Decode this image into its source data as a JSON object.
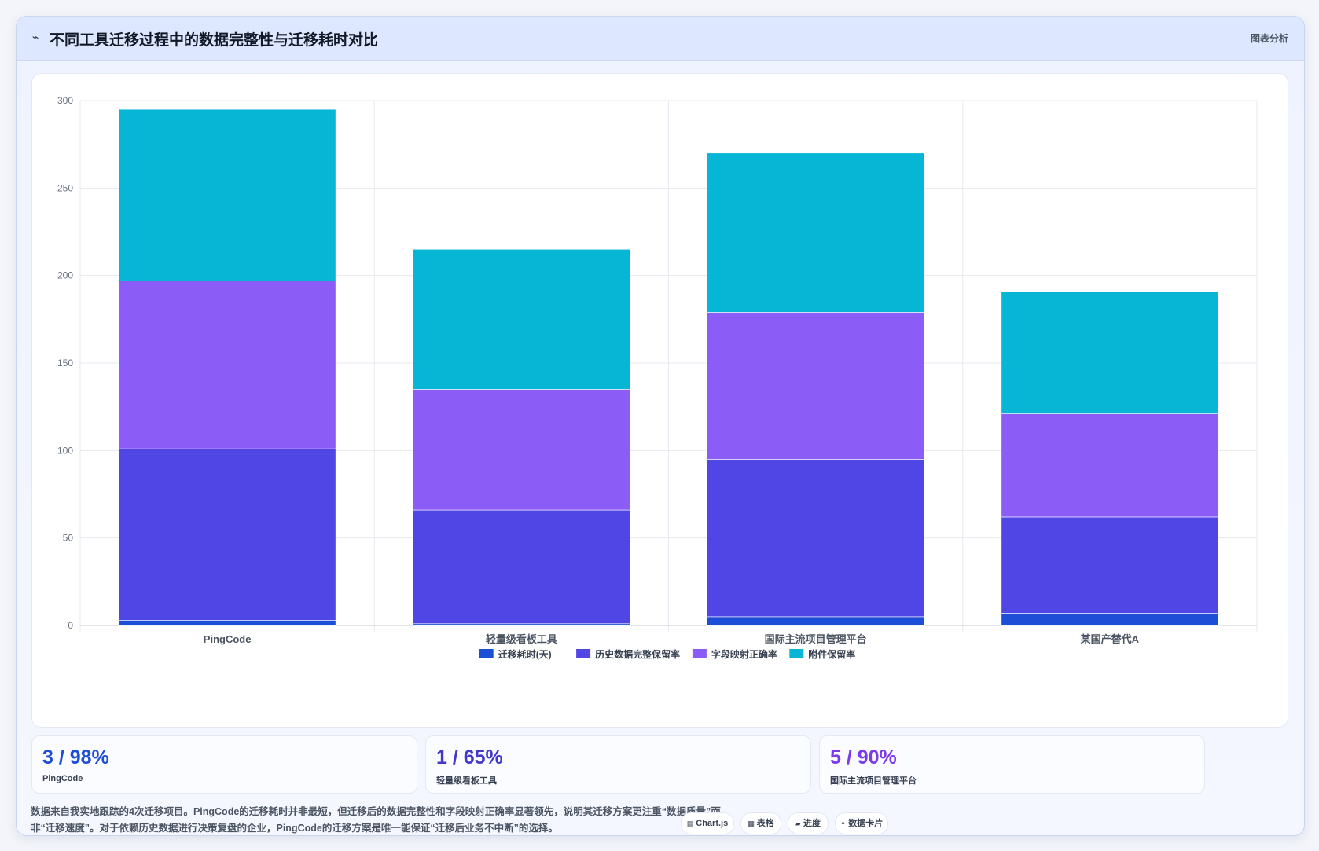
{
  "header": {
    "icon": "chart-line-icon",
    "title": "不同工具迁移过程中的数据完整性与迁移耗时对比",
    "tag": "图表分析"
  },
  "chart_data": {
    "type": "bar",
    "stacked": true,
    "categories": [
      "PingCode",
      "轻量级看板工具",
      "国际主流项目管理平台",
      "某国产替代A"
    ],
    "series": [
      {
        "name": "迁移耗时(天)",
        "color": "#1d4ed8",
        "values": [
          3,
          1,
          5,
          7
        ]
      },
      {
        "name": "历史数据完整保留率",
        "color": "#4f46e5",
        "values": [
          98,
          65,
          90,
          55
        ]
      },
      {
        "name": "字段映射正确率",
        "color": "#8b5cf6",
        "values": [
          96,
          69,
          84,
          59
        ]
      },
      {
        "name": "附件保留率",
        "color": "#06b6d4",
        "values": [
          98,
          80,
          91,
          70
        ]
      }
    ],
    "y_ticks": [
      "0",
      "50",
      "100",
      "150",
      "200",
      "250",
      "300"
    ],
    "ylim": [
      0,
      300
    ],
    "grid": true,
    "legend_position": "bottom"
  },
  "stats": [
    {
      "value": "3 / 98%",
      "label": "PingCode",
      "color": "#1d4ed8"
    },
    {
      "value": "1 / 65%",
      "label": "轻量级看板工具",
      "color": "#4338ca"
    },
    {
      "value": "5 / 90%",
      "label": "国际主流项目管理平台",
      "color": "#7c3aed"
    }
  ],
  "note": "数据来自我实地跟踪的4次迁移项目。PingCode的迁移耗时并非最短，但迁移后的数据完整性和字段映射正确率显著领先，说明其迁移方案更注重“数据质量”而非“迁移速度”。对于依赖历史数据进行决策复盘的企业，PingCode的迁移方案是唯一能保证“迁移后业务不中断”的选择。",
  "chips": [
    {
      "icon": "▤",
      "label": "Chart.js"
    },
    {
      "icon": "▦",
      "label": "表格"
    },
    {
      "icon": "▰",
      "label": "进度"
    },
    {
      "icon": "✦",
      "label": "数据卡片"
    }
  ]
}
